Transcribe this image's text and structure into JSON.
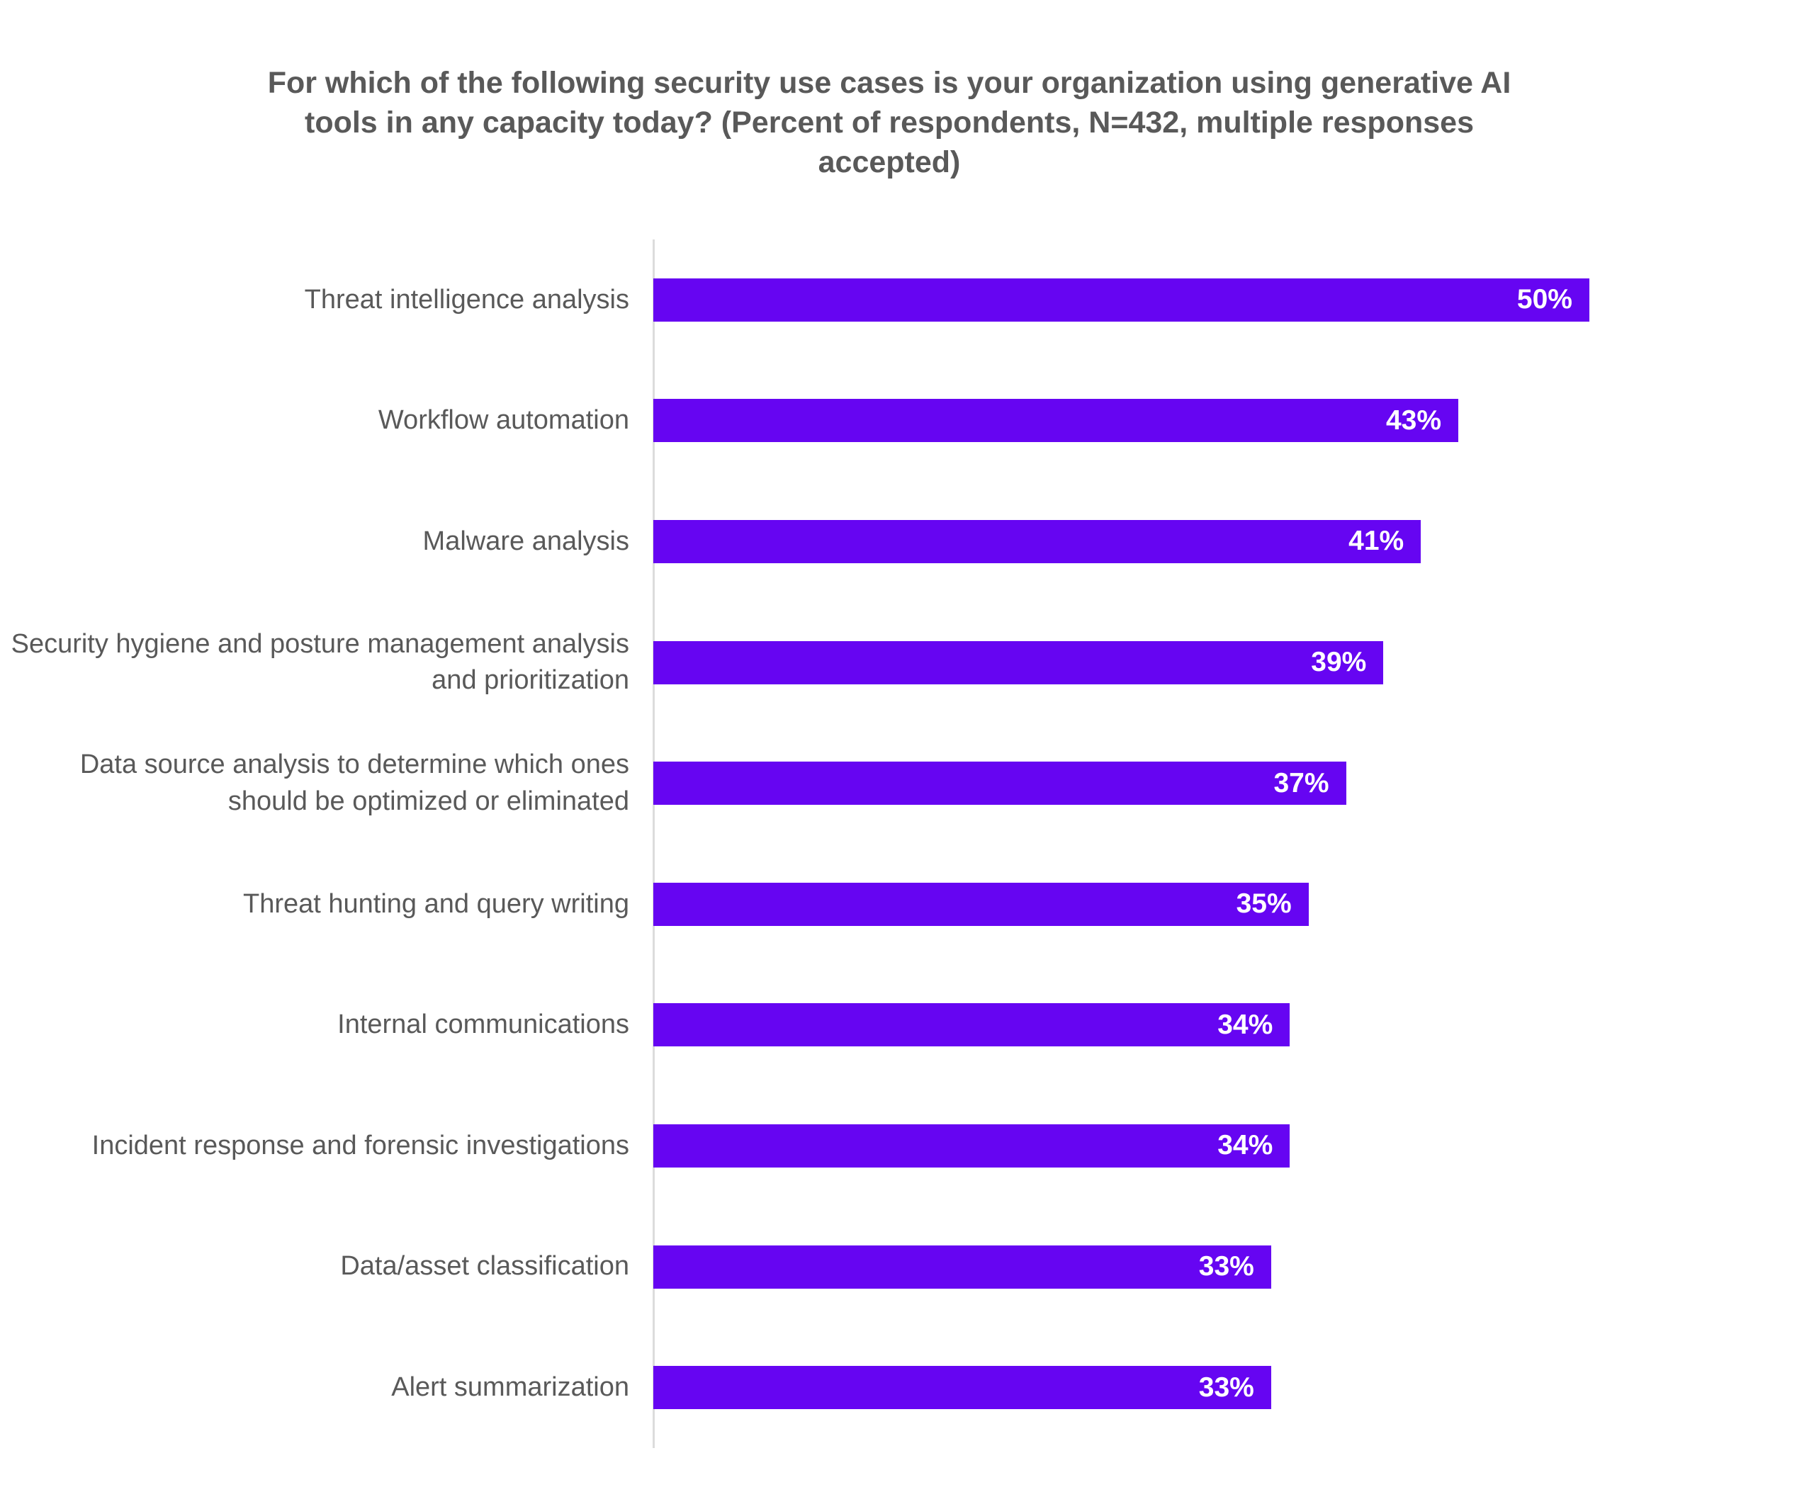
{
  "title": "For which of the following security use cases is your organization using generative AI tools in any capacity today? (Percent of respondents, N=432, multiple responses accepted)",
  "colors": {
    "bar": "#6605f2",
    "title_text": "#595959",
    "category_text": "#595959",
    "value_text": "#ffffff",
    "axis_line": "#dcdcdc",
    "background": "#ffffff"
  },
  "chart_data": {
    "type": "bar",
    "orientation": "horizontal",
    "title": "For which of the following security use cases is your organization using generative AI tools in any capacity today? (Percent of respondents, N=432, multiple responses accepted)",
    "categories": [
      "Threat intelligence analysis",
      "Workflow automation",
      "Malware analysis",
      "Security hygiene and posture management analysis and prioritization",
      "Data source analysis to determine which ones should be optimized or eliminated",
      "Threat hunting and query writing",
      "Internal communications",
      "Incident response and forensic investigations",
      "Data/asset classification",
      "Alert summarization"
    ],
    "values": [
      50,
      43,
      41,
      39,
      37,
      35,
      34,
      34,
      33,
      33
    ],
    "value_suffix": "%",
    "xlabel": "",
    "ylabel": "",
    "xlim": [
      0,
      62
    ],
    "grid": false,
    "legend": false,
    "data_label_position": "inside-end"
  }
}
